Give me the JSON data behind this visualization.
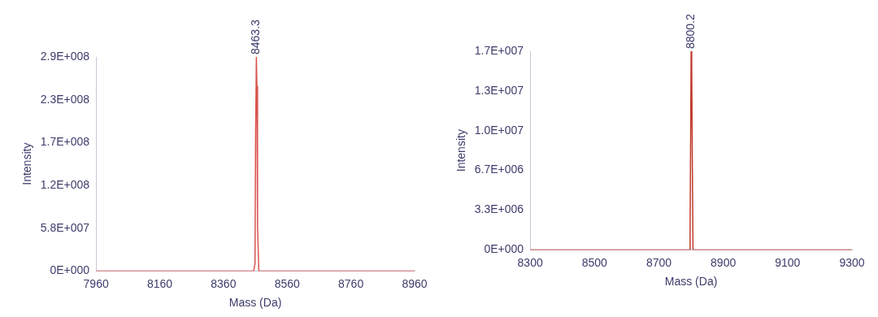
{
  "chart_data": [
    {
      "type": "line",
      "xlabel": "Mass (Da)",
      "ylabel": "Intensity",
      "xlim": [
        7960,
        8960
      ],
      "xticks": [
        7960,
        8160,
        8360,
        8560,
        8760,
        8960
      ],
      "ylim": [
        0,
        290000000
      ],
      "yticks": [
        {
          "value": 0,
          "label": "0E+000"
        },
        {
          "value": 58000000,
          "label": "5.8E+007"
        },
        {
          "value": 116000000,
          "label": "1.2E+008"
        },
        {
          "value": 174000000,
          "label": "1.7E+008"
        },
        {
          "value": 232000000,
          "label": "2.3E+008"
        },
        {
          "value": 290000000,
          "label": "2.9E+008"
        }
      ],
      "series": [
        {
          "color": "#d9534f",
          "x": [
            7960,
            8455,
            8459,
            8461,
            8463.3,
            8465,
            8467,
            8471,
            8960
          ],
          "values": [
            0,
            0,
            10000000,
            190000000,
            290000000,
            250000000,
            60000000,
            0,
            0
          ]
        }
      ],
      "annotations": [
        {
          "text": "8463.3",
          "x": 8463.3,
          "y": 290000000
        }
      ],
      "marker": "none",
      "grid": false
    },
    {
      "type": "line",
      "xlabel": "Mass (Da)",
      "ylabel": "Intensity",
      "xlim": [
        8300,
        9300
      ],
      "xticks": [
        8300,
        8500,
        8700,
        8900,
        9100,
        9300
      ],
      "ylim": [
        0,
        16700000
      ],
      "yticks": [
        {
          "value": 0,
          "label": "0E+000"
        },
        {
          "value": 3340000,
          "label": "3.3E+006"
        },
        {
          "value": 6680000,
          "label": "6.7E+006"
        },
        {
          "value": 10020000,
          "label": "1.0E+007"
        },
        {
          "value": 13360000,
          "label": "1.3E+007"
        },
        {
          "value": 16700000,
          "label": "1.7E+007"
        }
      ],
      "series": [
        {
          "color": "#c0392b",
          "x": [
            8300,
            8795,
            8797,
            8799,
            8800.2,
            8802,
            8804,
            8806,
            9300
          ],
          "values": [
            0,
            0,
            2000000,
            11000000,
            16700000,
            15000000,
            7000000,
            0,
            0
          ]
        }
      ],
      "annotations": [
        {
          "text": "8800.2",
          "x": 8800.2,
          "y": 16700000
        }
      ],
      "marker": "none",
      "grid": false
    }
  ]
}
